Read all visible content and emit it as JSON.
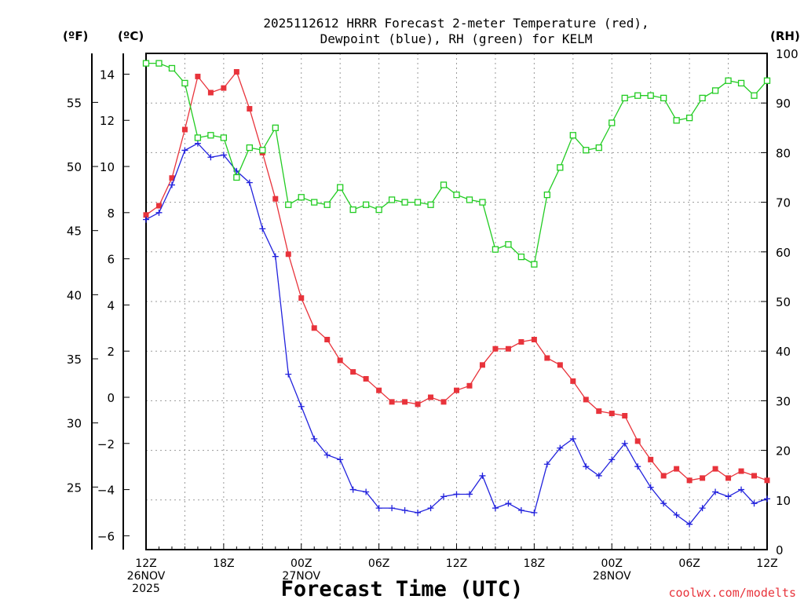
{
  "chart_data": {
    "type": "line",
    "title_lines": [
      "2025112612 HRRR Forecast 2-meter Temperature (red),",
      "Dewpoint (blue), RH (green) for KELM"
    ],
    "unit_f": "(ºF)",
    "unit_c": "(ºC)",
    "unit_rh": "(RH)",
    "xlabel": "Forecast Time (UTC)",
    "credit": "coolwx.com/modelts",
    "hours_range": [
      0,
      48
    ],
    "ylim_c": [
      -6.6,
      14.9
    ],
    "ylim_rh": [
      0,
      100
    ],
    "yticks_c": [
      "14",
      "12",
      "10",
      "8",
      "6",
      "4",
      "2",
      "0",
      "−2",
      "−4",
      "−6"
    ],
    "yticks_f": [
      "55",
      "50",
      "45",
      "40",
      "35",
      "30",
      "25"
    ],
    "yticks_rh": [
      "100",
      "90",
      "80",
      "70",
      "60",
      "50",
      "40",
      "30",
      "20",
      "10",
      "0"
    ],
    "xticks": [
      {
        "hour": 0,
        "lines": [
          "12Z",
          "26NOV",
          "2025"
        ]
      },
      {
        "hour": 6,
        "lines": [
          "18Z"
        ]
      },
      {
        "hour": 12,
        "lines": [
          "00Z",
          "27NOV"
        ]
      },
      {
        "hour": 18,
        "lines": [
          "06Z"
        ]
      },
      {
        "hour": 24,
        "lines": [
          "12Z"
        ]
      },
      {
        "hour": 30,
        "lines": [
          "18Z"
        ]
      },
      {
        "hour": 36,
        "lines": [
          "00Z",
          "28NOV"
        ]
      },
      {
        "hour": 42,
        "lines": [
          "06Z"
        ]
      },
      {
        "hour": 48,
        "lines": [
          "12Z"
        ]
      }
    ],
    "series": [
      {
        "name": "Temperature",
        "units": "C",
        "color": "#e8333b",
        "marker": "filled-square",
        "values": [
          7.9,
          8.3,
          9.5,
          11.6,
          13.9,
          13.2,
          13.4,
          14.1,
          12.5,
          10.6,
          8.6,
          6.2,
          4.3,
          3.0,
          2.5,
          1.6,
          1.1,
          0.8,
          0.3,
          -0.2,
          -0.2,
          -0.3,
          0.0,
          -0.2,
          0.3,
          0.5,
          1.4,
          2.1,
          2.1,
          2.4,
          2.5,
          1.7,
          1.4,
          0.7,
          -0.1,
          -0.6,
          -0.7,
          -0.8,
          -1.9,
          -2.7,
          -3.4,
          -3.1,
          -3.6,
          -3.5,
          -3.1,
          -3.5,
          -3.2,
          -3.4,
          -3.6
        ]
      },
      {
        "name": "Dewpoint",
        "units": "C",
        "color": "#2222dd",
        "marker": "plus",
        "values": [
          7.7,
          8.0,
          9.2,
          10.7,
          11.0,
          10.4,
          10.5,
          9.8,
          9.3,
          7.3,
          6.1,
          1.0,
          -0.4,
          -1.8,
          -2.5,
          -2.7,
          -4.0,
          -4.1,
          -4.8,
          -4.8,
          -4.9,
          -5.0,
          -4.8,
          -4.3,
          -4.2,
          -4.2,
          -3.4,
          -4.8,
          -4.6,
          -4.9,
          -5.0,
          -2.9,
          -2.2,
          -1.8,
          -3.0,
          -3.4,
          -2.7,
          -2.0,
          -3.0,
          -3.9,
          -4.6,
          -5.1,
          -5.5,
          -4.8,
          -4.1,
          -4.3,
          -4.0,
          -4.6,
          -4.4
        ]
      },
      {
        "name": "RH",
        "units": "%",
        "color": "#22cc22",
        "marker": "open-square",
        "values": [
          98,
          98,
          97,
          94,
          83,
          83.5,
          83,
          75,
          81,
          80.5,
          85,
          69.5,
          71,
          70,
          69.5,
          73,
          68.5,
          69.5,
          68.5,
          70.5,
          70,
          70,
          69.5,
          73.5,
          71.5,
          70.5,
          70,
          60.5,
          61.5,
          59,
          57.5,
          71.5,
          77,
          83.5,
          80.5,
          81,
          86,
          91,
          91.5,
          91.5,
          91,
          86.5,
          87,
          91,
          92.5,
          94.5,
          94,
          91.5,
          94.5
        ]
      }
    ]
  }
}
